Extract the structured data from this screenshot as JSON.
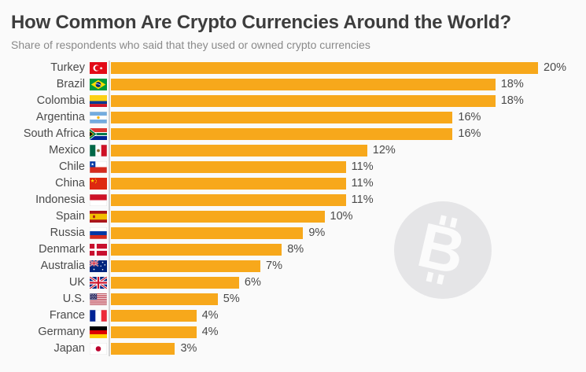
{
  "header": {
    "title": "How Common Are Crypto Currencies Around the World?",
    "subtitle": "Share of respondents who said that they used or owned crypto currencies"
  },
  "chart_data": {
    "type": "bar",
    "orientation": "horizontal",
    "title": "How Common Are Crypto Currencies Around the World?",
    "subtitle": "Share of respondents who said that they used or owned crypto currencies",
    "xlabel": "",
    "ylabel": "",
    "unit": "%",
    "xlim": [
      0,
      20
    ],
    "grid": false,
    "legend": false,
    "categories": [
      "Turkey",
      "Brazil",
      "Colombia",
      "Argentina",
      "South Africa",
      "Mexico",
      "Chile",
      "China",
      "Indonesia",
      "Spain",
      "Russia",
      "Denmark",
      "Australia",
      "UK",
      "U.S.",
      "France",
      "Germany",
      "Japan"
    ],
    "values": [
      20,
      18,
      18,
      16,
      16,
      12,
      11,
      11,
      11,
      10,
      9,
      8,
      7,
      6,
      5,
      4,
      4,
      3
    ],
    "value_labels": [
      "20%",
      "18%",
      "18%",
      "16%",
      "16%",
      "12%",
      "11%",
      "11%",
      "11%",
      "10%",
      "9%",
      "8%",
      "7%",
      "6%",
      "5%",
      "4%",
      "4%",
      "3%"
    ],
    "flag_icons": [
      "turkey-flag-icon",
      "brazil-flag-icon",
      "colombia-flag-icon",
      "argentina-flag-icon",
      "south-africa-flag-icon",
      "mexico-flag-icon",
      "chile-flag-icon",
      "china-flag-icon",
      "indonesia-flag-icon",
      "spain-flag-icon",
      "russia-flag-icon",
      "denmark-flag-icon",
      "australia-flag-icon",
      "uk-flag-icon",
      "us-flag-icon",
      "france-flag-icon",
      "germany-flag-icon",
      "japan-flag-icon"
    ]
  },
  "watermark": {
    "icon": "bitcoin-icon",
    "symbol": "B"
  },
  "colors": {
    "background": "#FAFAFA",
    "bar": "#F7A81B",
    "title": "#3D3D3D",
    "subtitle": "#8A8A8A",
    "label": "#4A4A4A",
    "axis": "#D2D2D2",
    "watermark_circle": "#E5E5E7",
    "watermark_symbol": "#FBFBFB"
  }
}
